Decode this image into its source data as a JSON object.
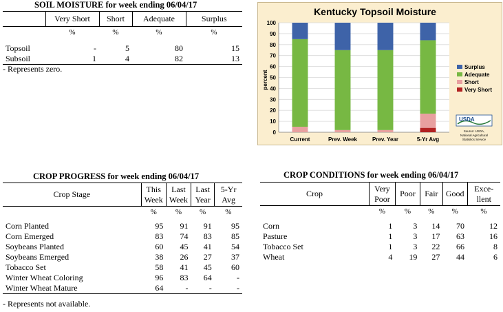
{
  "soil": {
    "title": "SOIL MOISTURE for week ending 06/04/17",
    "headers": [
      "Very Short",
      "Short",
      "Adequate",
      "Surplus"
    ],
    "units": [
      "%",
      "%",
      "%",
      "%"
    ],
    "rows": [
      {
        "label": "Topsoil",
        "values": [
          "-",
          "5",
          "80",
          "15"
        ]
      },
      {
        "label": "Subsoil",
        "values": [
          "1",
          "4",
          "82",
          "13"
        ]
      }
    ],
    "note": "- Represents zero."
  },
  "progress": {
    "title": "CROP PROGRESS for week ending 06/04/17",
    "stage_header": "Crop Stage",
    "headers": [
      [
        "This",
        "Week"
      ],
      [
        "Last",
        "Week"
      ],
      [
        "Last",
        "Year"
      ],
      [
        "5-Yr",
        "Avg"
      ]
    ],
    "units": [
      "%",
      "%",
      "%",
      "%"
    ],
    "rows": [
      {
        "label": "Corn Planted",
        "values": [
          "95",
          "91",
          "91",
          "95"
        ]
      },
      {
        "label": "Corn Emerged",
        "values": [
          "83",
          "74",
          "83",
          "85"
        ]
      },
      {
        "label": "Soybeans Planted",
        "values": [
          "60",
          "45",
          "41",
          "54"
        ]
      },
      {
        "label": "Soybeans Emerged",
        "values": [
          "38",
          "26",
          "27",
          "37"
        ]
      },
      {
        "label": "Tobacco Set",
        "values": [
          "58",
          "41",
          "45",
          "60"
        ]
      },
      {
        "label": "Winter Wheat Coloring",
        "values": [
          "96",
          "83",
          "64",
          "-"
        ]
      },
      {
        "label": "Winter Wheat Mature",
        "values": [
          "64",
          "-",
          "-",
          "-"
        ]
      }
    ],
    "note": "- Represents not available."
  },
  "conditions": {
    "title": "CROP CONDITIONS for week ending 06/04/17",
    "crop_header": "Crop",
    "headers": [
      [
        "Very",
        "Poor"
      ],
      [
        "Poor"
      ],
      [
        "Fair"
      ],
      [
        "Good"
      ],
      [
        "Exce-",
        "llent"
      ]
    ],
    "units": [
      "%",
      "%",
      "%",
      "%",
      "%"
    ],
    "rows": [
      {
        "label": "Corn",
        "values": [
          "1",
          "3",
          "14",
          "70",
          "12"
        ]
      },
      {
        "label": "Pasture",
        "values": [
          "1",
          "3",
          "17",
          "63",
          "16"
        ]
      },
      {
        "label": "Tobacco Set",
        "values": [
          "1",
          "3",
          "22",
          "66",
          "8"
        ]
      },
      {
        "label": "Wheat",
        "values": [
          "4",
          "19",
          "27",
          "44",
          "6"
        ]
      }
    ]
  },
  "chart_data": {
    "type": "bar",
    "stacked": true,
    "title": "Kentucky Topsoil Moisture",
    "ylabel": "percent",
    "ylim": [
      0,
      100
    ],
    "yticks": [
      0,
      10,
      20,
      30,
      40,
      50,
      60,
      70,
      80,
      90,
      100
    ],
    "categories": [
      "Current",
      "Prev. Week",
      "Prev. Year",
      "5-Yr Avg"
    ],
    "series": [
      {
        "name": "Very Short",
        "color": "#b22222",
        "values": [
          0,
          0,
          0,
          4
        ]
      },
      {
        "name": "Short",
        "color": "#e8a0a0",
        "values": [
          5,
          2,
          2,
          13
        ]
      },
      {
        "name": "Adequate",
        "color": "#77b843",
        "values": [
          80,
          73,
          73,
          67
        ]
      },
      {
        "name": "Surplus",
        "color": "#3e63a8",
        "values": [
          15,
          25,
          25,
          16
        ]
      }
    ],
    "legend_position": "right",
    "grid": true,
    "logo_text": "USDA",
    "source": [
      "Source: USDA,",
      "National Agricultural",
      "Statistics Service"
    ]
  }
}
